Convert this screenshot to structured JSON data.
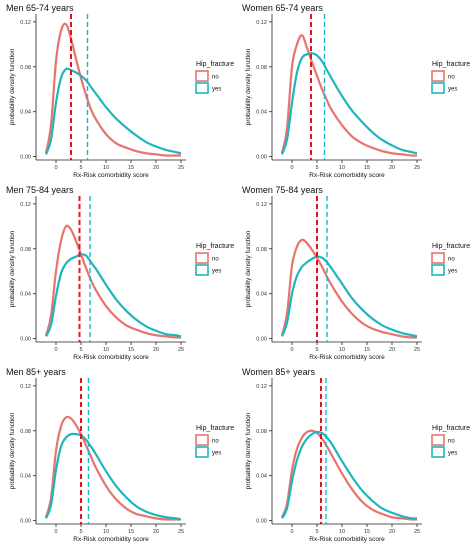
{
  "legend": {
    "title": "Hip_fracture",
    "items": [
      {
        "label": "no",
        "color": "#E8736C"
      },
      {
        "label": "yes",
        "color": "#1FB5BE"
      }
    ]
  },
  "colors": {
    "no": "#E8736C",
    "yes": "#1FB5BE",
    "vline_no": "#E0141E",
    "vline_yes": "#1FB5BE",
    "axis": "#222222"
  },
  "axis_common": {
    "xlabel": "Rx-Risk comorbidity score",
    "ylabel": "probability density function"
  },
  "chart_data": [
    {
      "type": "line",
      "title": "Men 65-74 years",
      "xlim": [
        -4,
        26
      ],
      "ylim": [
        -0.003,
        0.127
      ],
      "xticks": [
        0,
        5,
        10,
        15,
        20,
        25
      ],
      "yticks": [
        0.0,
        0.04,
        0.08,
        0.12
      ],
      "yticklabels": [
        "0.00",
        "0.04",
        "0.08",
        "0.12"
      ],
      "vlines": {
        "no": 3.0,
        "yes": 6.3
      },
      "series": [
        {
          "name": "no",
          "x": [
            -2,
            -1,
            0,
            1,
            2,
            3,
            4,
            5,
            6,
            7,
            8,
            10,
            12,
            14,
            16,
            18,
            20,
            22,
            24,
            25
          ],
          "y": [
            0.003,
            0.028,
            0.085,
            0.112,
            0.118,
            0.105,
            0.087,
            0.07,
            0.055,
            0.042,
            0.033,
            0.02,
            0.012,
            0.008,
            0.005,
            0.003,
            0.002,
            0.001,
            0.001,
            0.001
          ]
        },
        {
          "name": "yes",
          "x": [
            -2,
            -1,
            0,
            1,
            2,
            3,
            4,
            5,
            6,
            7,
            8,
            10,
            12,
            14,
            16,
            18,
            20,
            22,
            24,
            25
          ],
          "y": [
            0.002,
            0.015,
            0.048,
            0.07,
            0.078,
            0.077,
            0.075,
            0.072,
            0.068,
            0.062,
            0.056,
            0.044,
            0.034,
            0.026,
            0.019,
            0.013,
            0.009,
            0.006,
            0.004,
            0.003
          ]
        }
      ]
    },
    {
      "type": "line",
      "title": "Women 65-74 years",
      "xlim": [
        -4,
        26
      ],
      "ylim": [
        -0.003,
        0.127
      ],
      "xticks": [
        0,
        5,
        10,
        15,
        20,
        25
      ],
      "yticks": [
        0.0,
        0.04,
        0.08,
        0.12
      ],
      "yticklabels": [
        "0.00",
        "0.04",
        "0.08",
        "0.12"
      ],
      "vlines": {
        "no": 3.8,
        "yes": 6.5
      },
      "series": [
        {
          "name": "no",
          "x": [
            -2,
            -1,
            0,
            1,
            2,
            3,
            4,
            5,
            6,
            7,
            8,
            10,
            12,
            14,
            16,
            18,
            20,
            22,
            24,
            25
          ],
          "y": [
            0.003,
            0.025,
            0.08,
            0.1,
            0.108,
            0.097,
            0.084,
            0.072,
            0.06,
            0.05,
            0.041,
            0.028,
            0.018,
            0.012,
            0.008,
            0.005,
            0.003,
            0.002,
            0.001,
            0.001
          ]
        },
        {
          "name": "yes",
          "x": [
            -2,
            -1,
            0,
            1,
            2,
            3,
            4,
            5,
            6,
            7,
            8,
            10,
            12,
            14,
            16,
            18,
            20,
            22,
            24,
            25
          ],
          "y": [
            0.002,
            0.015,
            0.048,
            0.075,
            0.088,
            0.091,
            0.092,
            0.09,
            0.085,
            0.077,
            0.069,
            0.054,
            0.041,
            0.031,
            0.022,
            0.015,
            0.01,
            0.006,
            0.004,
            0.003
          ]
        }
      ]
    },
    {
      "type": "line",
      "title": "Men 75-84 years",
      "xlim": [
        -4,
        26
      ],
      "ylim": [
        -0.003,
        0.127
      ],
      "xticks": [
        0,
        5,
        10,
        15,
        20,
        25
      ],
      "yticks": [
        0.0,
        0.04,
        0.08,
        0.12
      ],
      "yticklabels": [
        "0.00",
        "0.04",
        "0.08",
        "0.12"
      ],
      "vlines": {
        "no": 4.7,
        "yes": 6.8
      },
      "series": [
        {
          "name": "no",
          "x": [
            -2,
            -1,
            0,
            1,
            2,
            3,
            4,
            5,
            6,
            7,
            8,
            10,
            12,
            14,
            16,
            18,
            20,
            22,
            24,
            25
          ],
          "y": [
            0.003,
            0.02,
            0.06,
            0.087,
            0.1,
            0.097,
            0.087,
            0.075,
            0.063,
            0.052,
            0.043,
            0.029,
            0.019,
            0.012,
            0.008,
            0.005,
            0.003,
            0.002,
            0.001,
            0.001
          ]
        },
        {
          "name": "yes",
          "x": [
            -2,
            -1,
            0,
            1,
            2,
            3,
            4,
            5,
            6,
            7,
            8,
            10,
            12,
            14,
            16,
            18,
            20,
            22,
            24,
            25
          ],
          "y": [
            0.002,
            0.012,
            0.038,
            0.058,
            0.067,
            0.071,
            0.073,
            0.075,
            0.074,
            0.068,
            0.062,
            0.048,
            0.035,
            0.025,
            0.017,
            0.011,
            0.007,
            0.004,
            0.003,
            0.002
          ]
        }
      ]
    },
    {
      "type": "line",
      "title": "Women 75-84 years",
      "xlim": [
        -4,
        26
      ],
      "ylim": [
        -0.003,
        0.127
      ],
      "xticks": [
        0,
        5,
        10,
        15,
        20,
        25
      ],
      "yticks": [
        0.0,
        0.04,
        0.08,
        0.12
      ],
      "yticklabels": [
        "0.00",
        "0.04",
        "0.08",
        "0.12"
      ],
      "vlines": {
        "no": 5.0,
        "yes": 7.0
      },
      "series": [
        {
          "name": "no",
          "x": [
            -2,
            -1,
            0,
            1,
            2,
            3,
            4,
            5,
            6,
            7,
            8,
            10,
            12,
            14,
            16,
            18,
            20,
            22,
            24,
            25
          ],
          "y": [
            0.003,
            0.022,
            0.065,
            0.082,
            0.088,
            0.085,
            0.079,
            0.072,
            0.064,
            0.055,
            0.047,
            0.033,
            0.022,
            0.014,
            0.009,
            0.006,
            0.004,
            0.002,
            0.001,
            0.001
          ]
        },
        {
          "name": "yes",
          "x": [
            -2,
            -1,
            0,
            1,
            2,
            3,
            4,
            5,
            6,
            7,
            8,
            10,
            12,
            14,
            16,
            18,
            20,
            22,
            24,
            25
          ],
          "y": [
            0.002,
            0.014,
            0.04,
            0.056,
            0.064,
            0.068,
            0.071,
            0.073,
            0.072,
            0.068,
            0.062,
            0.049,
            0.036,
            0.026,
            0.018,
            0.012,
            0.008,
            0.005,
            0.003,
            0.002
          ]
        }
      ]
    },
    {
      "type": "line",
      "title": "Men 85+ years",
      "xlim": [
        -4,
        26
      ],
      "ylim": [
        -0.003,
        0.127
      ],
      "xticks": [
        0,
        5,
        10,
        15,
        20,
        25
      ],
      "yticks": [
        0.0,
        0.04,
        0.08,
        0.12
      ],
      "yticklabels": [
        "0.00",
        "0.04",
        "0.08",
        "0.12"
      ],
      "vlines": {
        "no": 5.0,
        "yes": 6.5
      },
      "series": [
        {
          "name": "no",
          "x": [
            -2,
            -1,
            0,
            1,
            2,
            3,
            4,
            5,
            6,
            7,
            8,
            10,
            12,
            14,
            16,
            18,
            20,
            22,
            24,
            25
          ],
          "y": [
            0.003,
            0.02,
            0.062,
            0.084,
            0.092,
            0.091,
            0.085,
            0.077,
            0.067,
            0.057,
            0.047,
            0.031,
            0.019,
            0.011,
            0.006,
            0.004,
            0.002,
            0.001,
            0.001,
            0.001
          ]
        },
        {
          "name": "yes",
          "x": [
            -2,
            -1,
            0,
            1,
            2,
            3,
            4,
            5,
            6,
            7,
            8,
            10,
            12,
            14,
            16,
            18,
            20,
            22,
            24,
            25
          ],
          "y": [
            0.002,
            0.014,
            0.045,
            0.066,
            0.074,
            0.077,
            0.077,
            0.076,
            0.072,
            0.066,
            0.059,
            0.044,
            0.031,
            0.021,
            0.013,
            0.008,
            0.005,
            0.003,
            0.002,
            0.001
          ]
        }
      ]
    },
    {
      "type": "line",
      "title": "Women 85+ years",
      "xlim": [
        -4,
        26
      ],
      "ylim": [
        -0.003,
        0.127
      ],
      "xticks": [
        0,
        5,
        10,
        15,
        20,
        25
      ],
      "yticks": [
        0.0,
        0.04,
        0.08,
        0.12
      ],
      "yticklabels": [
        "0.00",
        "0.04",
        "0.08",
        "0.12"
      ],
      "vlines": {
        "no": 5.8,
        "yes": 6.8
      },
      "series": [
        {
          "name": "no",
          "x": [
            -2,
            -1,
            0,
            1,
            2,
            3,
            4,
            5,
            6,
            7,
            8,
            10,
            12,
            14,
            16,
            18,
            20,
            22,
            24,
            25
          ],
          "y": [
            0.003,
            0.015,
            0.045,
            0.064,
            0.074,
            0.079,
            0.08,
            0.078,
            0.073,
            0.066,
            0.058,
            0.042,
            0.028,
            0.017,
            0.01,
            0.006,
            0.003,
            0.002,
            0.001,
            0.001
          ]
        },
        {
          "name": "yes",
          "x": [
            -2,
            -1,
            0,
            1,
            2,
            3,
            4,
            5,
            6,
            7,
            8,
            10,
            12,
            14,
            16,
            18,
            20,
            22,
            24,
            25
          ],
          "y": [
            0.002,
            0.011,
            0.035,
            0.054,
            0.066,
            0.073,
            0.077,
            0.079,
            0.078,
            0.074,
            0.068,
            0.053,
            0.039,
            0.027,
            0.018,
            0.011,
            0.007,
            0.004,
            0.002,
            0.002
          ]
        }
      ]
    }
  ]
}
